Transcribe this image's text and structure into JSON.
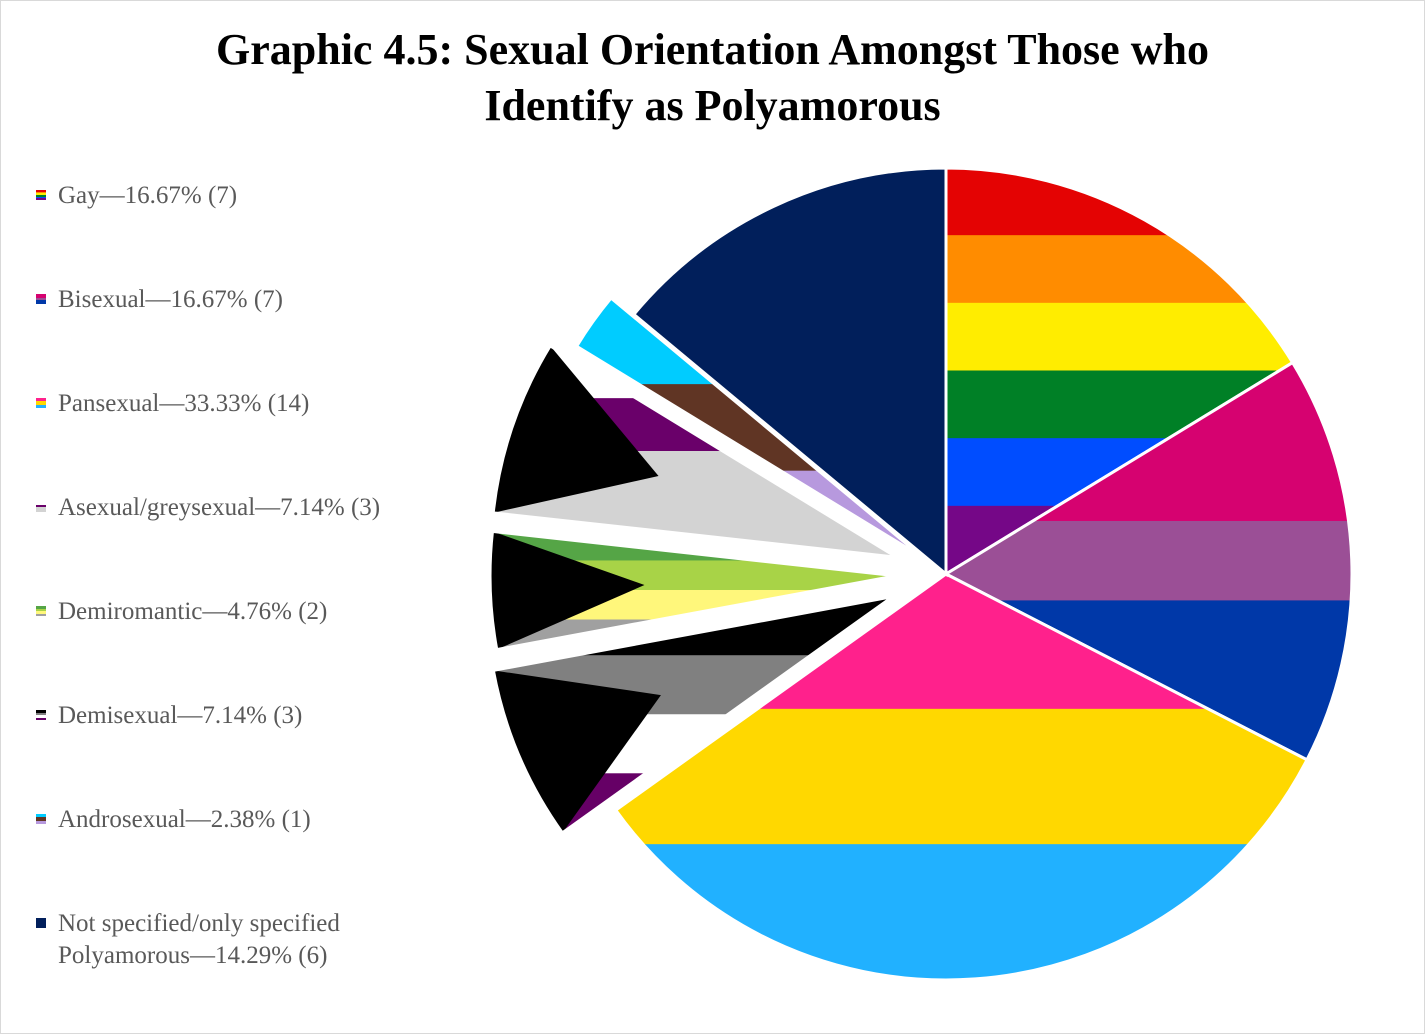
{
  "chart_data": {
    "type": "pie",
    "title": "Graphic 4.5: Sexual Orientation Amongst Those who Identify as Polyamorous",
    "title_lines": [
      "Graphic 4.5: Sexual Orientation Amongst Those who",
      "Identify as Polyamorous"
    ],
    "legend_placement": "left",
    "start_angle_deg": 0,
    "slices": [
      {
        "category": "Gay",
        "label": "Gay—16.67% (7)",
        "percent": 16.67,
        "count": 7,
        "stripes": [
          "#e40303",
          "#ff8c00",
          "#ffed00",
          "#008026",
          "#004dff",
          "#750787"
        ]
      },
      {
        "category": "Bisexual",
        "label": "Bisexual—16.67% (7)",
        "percent": 16.67,
        "count": 7,
        "stripes": [
          "#d60270",
          "#d60270",
          "#9b4f96",
          "#0038a8",
          "#0038a8"
        ]
      },
      {
        "category": "Pansexual",
        "label": "Pansexual—33.33% (14)",
        "percent": 33.33,
        "count": 14,
        "stripes": [
          "#ff218c",
          "#ffd800",
          "#21b1ff"
        ]
      },
      {
        "category": "Demisexual",
        "label": "Demisexual—7.14% (3)",
        "percent": 7.14,
        "count": 3,
        "stripes": [
          "#000000",
          "#808080",
          "#ffffff",
          "#660066"
        ],
        "wedge": "#000000"
      },
      {
        "category": "Demiromantic",
        "label": "Demiromantic—4.76% (2)",
        "percent": 4.76,
        "count": 2,
        "stripes": [
          "#55a546",
          "#a8d347",
          "#fff77b",
          "#a0a0a0"
        ],
        "wedge": "#000000"
      },
      {
        "category": "Asexual/greysexual",
        "label": "Asexual/greysexual—7.14% (3)",
        "percent": 7.14,
        "count": 3,
        "stripes": [
          "#ffffff",
          "#6a006a",
          "#d3d3d3",
          "#d3d3d3"
        ],
        "wedge": "#000000"
      },
      {
        "category": "Androsexual",
        "label": "Androsexual—2.38% (1)",
        "percent": 2.38,
        "count": 1,
        "stripes": [
          "#00ccff",
          "#603524",
          "#b799de"
        ]
      },
      {
        "category": "Not specified/only specified Polyamorous",
        "label": "Not specified/only specified\nPolyamorous—14.29% (6)",
        "percent": 14.29,
        "count": 6,
        "stripes": [
          "#011f5b"
        ]
      }
    ],
    "legend_order": [
      0,
      1,
      2,
      5,
      4,
      3,
      6,
      7
    ]
  }
}
